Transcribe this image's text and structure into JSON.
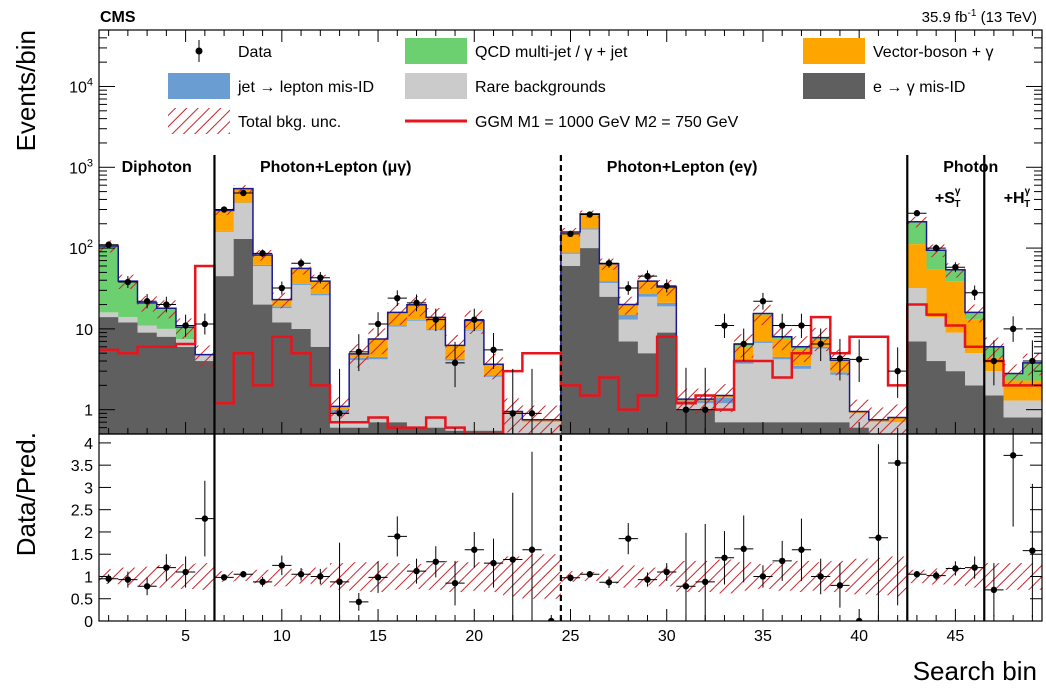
{
  "chart_data": {
    "type": "bar",
    "header": {
      "experiment": "CMS",
      "lumi": "35.9 fb",
      "lumi_sup": "-1",
      "energy": " (13 TeV)"
    },
    "x_axis": {
      "label": "Search bin",
      "range": [
        0.5,
        49.5
      ],
      "ticks": [
        5,
        10,
        15,
        20,
        25,
        30,
        35,
        40,
        45
      ]
    },
    "top_panel": {
      "ylabel": "Events/bin",
      "yscale": "log",
      "ylim": [
        0.5,
        50000
      ],
      "tick_labels": [
        "1",
        "10",
        "10",
        "10",
        "10"
      ],
      "tick_exps": [
        "",
        "",
        "2",
        "3",
        "4"
      ]
    },
    "bottom_panel": {
      "ylabel": "Data/Pred.",
      "ylim": [
        0,
        4.2
      ],
      "tick_labels": [
        "0",
        "0.5",
        "1",
        "1.5",
        "2",
        "2.5",
        "3",
        "3.5",
        "4"
      ]
    },
    "legend": [
      {
        "label": "Data",
        "kind": "data"
      },
      {
        "label": "QCD multi-jet / γ + jet",
        "kind": "fill",
        "color": "#6cd071"
      },
      {
        "label": "Vector-boson + γ",
        "kind": "fill",
        "color": "#ffa500"
      },
      {
        "label": "jet → lepton mis-ID",
        "kind": "fill",
        "color": "#6a9ed3"
      },
      {
        "label": "Rare backgrounds",
        "kind": "fill",
        "color": "#cbcbcb"
      },
      {
        "label": "e → γ mis-ID",
        "kind": "fill",
        "color": "#5f5f5f"
      },
      {
        "label": "Total bkg. unc.",
        "kind": "hatch",
        "color": "#c8252c"
      },
      {
        "label": "GGM M1 = 1000 GeV M2 = 750 GeV",
        "kind": "line",
        "color": "#e8141c"
      }
    ],
    "regions": [
      {
        "label": "Diphoton",
        "center": 3.5
      },
      {
        "label": "Photon+Lepton (μγ)",
        "center": 12.8
      },
      {
        "label": "Photon+Lepton (eγ)",
        "center": 30.8
      },
      {
        "label": "Photon",
        "center": 45.8
      }
    ],
    "sub_regions": [
      {
        "label": "+S",
        "sub": "T",
        "sup": "γ",
        "center": 44.6
      },
      {
        "label": "+H",
        "sub": "T",
        "sup": "γ",
        "center": 48.2
      }
    ],
    "dividers": [
      {
        "x": 6.5,
        "style": "solid"
      },
      {
        "x": 24.5,
        "style": "dashed"
      },
      {
        "x": 42.5,
        "style": "solid"
      },
      {
        "x": 46.5,
        "style": "solid"
      }
    ],
    "stack_order": [
      "e → γ mis-ID",
      "Rare backgrounds",
      "jet → lepton mis-ID",
      "Vector-boson + γ",
      "QCD multi-jet / γ + jet"
    ],
    "bins": {
      "egamma": [
        14,
        12,
        9,
        8,
        6,
        4,
        45,
        130,
        20,
        12,
        10,
        6,
        0.6,
        0.6,
        0.7,
        0.7,
        0.6,
        0.6,
        0.55,
        0.55,
        0.55,
        0.5,
        0.5,
        0.5,
        60,
        100,
        25,
        7,
        5,
        9,
        1.0,
        1.0,
        0.7,
        0.7,
        0.7,
        0.7,
        0.7,
        0.7,
        0.7,
        0.6,
        0.5,
        0.5,
        7,
        4,
        3,
        2,
        1.5,
        0.8,
        0.8
      ],
      "rare": [
        2,
        2,
        2,
        2,
        1.5,
        0.8,
        115,
        230,
        40,
        6,
        25,
        20,
        0.3,
        3.5,
        3.5,
        10,
        12,
        9,
        3.5,
        9,
        2,
        0.4,
        0.2,
        0.2,
        25,
        70,
        12,
        6,
        20,
        10,
        0.2,
        0.2,
        0.5,
        3,
        6,
        3.5,
        2.5,
        5,
        2,
        0.3,
        0.2,
        0.2,
        25,
        10,
        6,
        3,
        1.5,
        0.5,
        0.5
      ],
      "jetlep": [
        0,
        0,
        0,
        0,
        0,
        0,
        3,
        5,
        2,
        1,
        1,
        1,
        0.1,
        0.3,
        0.3,
        0.3,
        0.3,
        0.3,
        0.2,
        0.2,
        0.1,
        0,
        0,
        0,
        3,
        5,
        2,
        2,
        2,
        2,
        0.1,
        0.1,
        0.2,
        0.3,
        0.3,
        0.3,
        0.3,
        0.3,
        0.2,
        0,
        0,
        0,
        0,
        0,
        0,
        0,
        0,
        0,
        0
      ],
      "vboson": [
        0,
        0,
        0,
        0,
        0,
        0,
        130,
        180,
        20,
        4,
        20,
        12,
        0.1,
        0.5,
        3,
        5,
        7,
        4,
        2,
        3,
        1,
        0.05,
        0.05,
        0.05,
        70,
        90,
        25,
        5,
        12,
        12,
        0.05,
        0.05,
        0.1,
        2,
        8,
        3,
        2,
        1.5,
        1,
        0.05,
        0.05,
        0.1,
        80,
        40,
        30,
        8,
        1.5,
        1,
        1
      ],
      "qcd": [
        90,
        25,
        10,
        8,
        3,
        0,
        0,
        0,
        0,
        0,
        0,
        0,
        0,
        0,
        0,
        0,
        0,
        0,
        0,
        0,
        0,
        0,
        0,
        0,
        0,
        0,
        0,
        0,
        0,
        0,
        0,
        0,
        0,
        0.5,
        0.5,
        0.5,
        0.5,
        0.3,
        0.2,
        0,
        0,
        0,
        100,
        40,
        15,
        3,
        1.5,
        0.5,
        1.5
      ],
      "signal": [
        5.5,
        5,
        6,
        6,
        6.5,
        60,
        1.2,
        5,
        2,
        8,
        5,
        2,
        0.7,
        0.7,
        0.8,
        0.6,
        0.6,
        0.8,
        0.6,
        0.5,
        0.5,
        3,
        5,
        5,
        2,
        1.5,
        2.5,
        1,
        1.5,
        8,
        1.2,
        1.5,
        1,
        4,
        4,
        2.5,
        5,
        14,
        5,
        8,
        8,
        2,
        20,
        15,
        11,
        6,
        4,
        2,
        2
      ],
      "data": [
        110,
        38,
        22,
        20,
        11,
        11.5,
        300,
        480,
        86,
        32,
        65,
        43,
        0.9,
        5.2,
        11.5,
        24,
        21,
        13,
        3.8,
        13,
        5.5,
        0.9,
        0.9,
        0.1,
        150,
        260,
        65,
        32,
        45,
        34,
        1.0,
        1.0,
        11,
        6.5,
        22,
        11,
        11,
        6.5,
        4.3,
        4.2,
        0.1,
        3.0,
        270,
        100,
        58,
        28,
        4,
        10,
        4
      ],
      "data_err_low": [
        10,
        6,
        4,
        4,
        3,
        3,
        17,
        22,
        9,
        5.5,
        8,
        6.5,
        0.8,
        2.2,
        3.4,
        4.8,
        4.5,
        3.6,
        1.9,
        3.6,
        2.3,
        0.8,
        0.8,
        0,
        12,
        16,
        8,
        5.6,
        6.7,
        5.8,
        0.8,
        0.8,
        3.3,
        2.5,
        4.7,
        3.3,
        3.3,
        2.5,
        2,
        2,
        0,
        1.6,
        16,
        10,
        7.6,
        5.3,
        2,
        3.1,
        2
      ],
      "data_err_high": [
        11,
        7,
        5,
        5,
        4,
        4,
        18,
        23,
        10,
        6.5,
        9,
        7.5,
        2.3,
        3.4,
        4.6,
        6,
        5.7,
        4.8,
        3.1,
        4.8,
        3.4,
        2.3,
        2.3,
        1.8,
        13,
        17,
        9,
        6.8,
        7.9,
        7,
        2.3,
        2.3,
        4.4,
        3.6,
        5.9,
        4.4,
        4.4,
        3.6,
        3.2,
        3.2,
        1.8,
        2.9,
        17,
        11,
        8.7,
        6.4,
        3.2,
        4.3,
        3.2
      ],
      "ratio": [
        0.95,
        0.93,
        0.78,
        1.2,
        1.1,
        2.3,
        0.98,
        1.05,
        0.88,
        1.25,
        1.05,
        1.0,
        0.88,
        0.43,
        0.98,
        1.9,
        1.12,
        1.33,
        0.85,
        1.6,
        1.3,
        1.38,
        1.6,
        0.0,
        0.97,
        1.05,
        0.87,
        1.85,
        0.93,
        1.1,
        0.78,
        0.88,
        1.42,
        1.62,
        1.0,
        1.35,
        1.6,
        1.0,
        0.8,
        0.0,
        1.87,
        3.55,
        1.05,
        1.02,
        1.18,
        1.2,
        0.7,
        3.72,
        1.58
      ],
      "ratio_err": [
        0.1,
        0.18,
        0.2,
        0.3,
        0.35,
        0.85,
        0.06,
        0.05,
        0.11,
        0.22,
        0.14,
        0.17,
        0.88,
        0.2,
        0.35,
        0.45,
        0.28,
        0.35,
        0.5,
        0.4,
        0.55,
        1.5,
        2.2,
        0.0,
        0.08,
        0.07,
        0.13,
        0.35,
        0.16,
        0.2,
        1.2,
        1.3,
        0.6,
        0.75,
        0.25,
        0.45,
        0.7,
        0.4,
        0.5,
        0.0,
        2.1,
        3.2,
        0.06,
        0.1,
        0.16,
        0.25,
        0.6,
        1.6,
        1.5
      ],
      "unc_rel": [
        0.17,
        0.2,
        0.22,
        0.25,
        0.28,
        0.3,
        0.12,
        0.1,
        0.15,
        0.22,
        0.16,
        0.2,
        0.3,
        0.32,
        0.35,
        0.3,
        0.28,
        0.3,
        0.35,
        0.32,
        0.35,
        0.45,
        0.5,
        0.5,
        0.12,
        0.1,
        0.16,
        0.25,
        0.2,
        0.22,
        0.35,
        0.35,
        0.38,
        0.32,
        0.28,
        0.32,
        0.35,
        0.32,
        0.35,
        0.4,
        0.42,
        0.45,
        0.15,
        0.18,
        0.2,
        0.25,
        0.3,
        0.3,
        0.3
      ]
    }
  }
}
